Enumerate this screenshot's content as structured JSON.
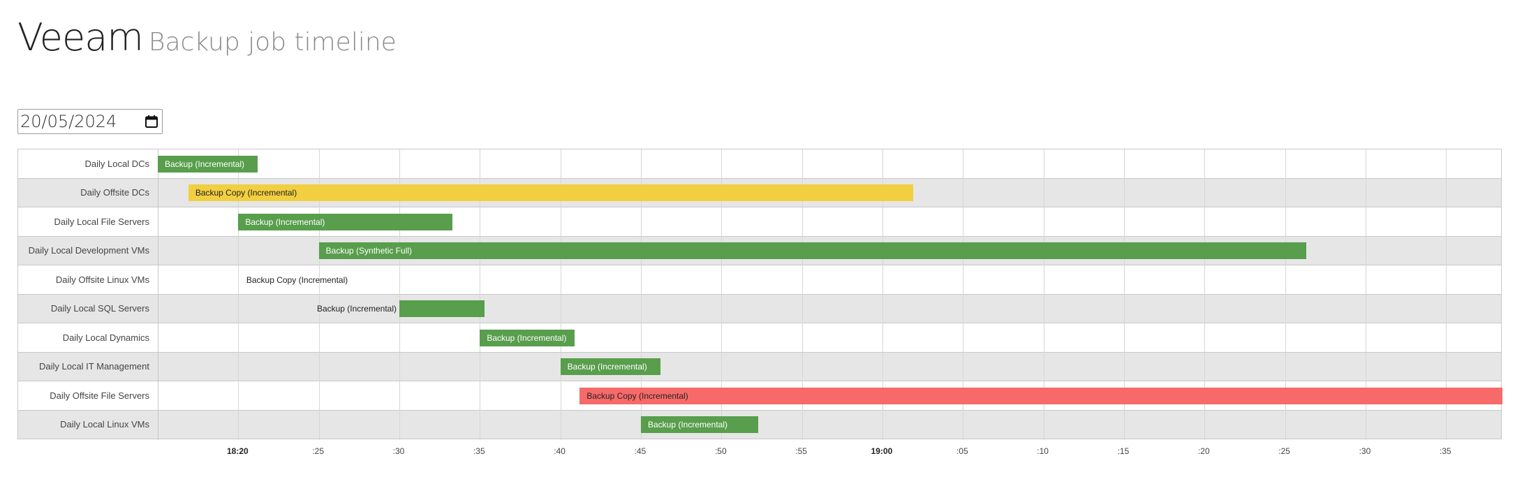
{
  "header": {
    "brand": "Veeam",
    "subtitle": "Backup job timeline"
  },
  "date_picker": {
    "value": "20/05/2024",
    "icon": "calendar-icon"
  },
  "timeline": {
    "start_minute": 1095,
    "end_minute": 1178.5,
    "axis_ticks": [
      {
        "label": "18:20",
        "minute": 1100,
        "major": true
      },
      {
        "label": ":25",
        "minute": 1105
      },
      {
        "label": ":30",
        "minute": 1110
      },
      {
        "label": ":35",
        "minute": 1115
      },
      {
        "label": ":40",
        "minute": 1120
      },
      {
        "label": ":45",
        "minute": 1125
      },
      {
        "label": ":50",
        "minute": 1130
      },
      {
        "label": ":55",
        "minute": 1135
      },
      {
        "label": "19:00",
        "minute": 1140,
        "major": true
      },
      {
        "label": ":05",
        "minute": 1145
      },
      {
        "label": ":10",
        "minute": 1150
      },
      {
        "label": ":15",
        "minute": 1155
      },
      {
        "label": ":20",
        "minute": 1160
      },
      {
        "label": ":25",
        "minute": 1165
      },
      {
        "label": ":30",
        "minute": 1170
      },
      {
        "label": ":35",
        "minute": 1175
      }
    ],
    "jobs": [
      {
        "name": "Daily Local DCs",
        "task": "Backup (Incremental)",
        "status": "success",
        "start": 1095.0,
        "end": 1101.2
      },
      {
        "name": "Daily Offsite DCs",
        "task": "Backup Copy (Incremental)",
        "status": "warning",
        "start": 1096.9,
        "end": 1141.9
      },
      {
        "name": "Daily Local File Servers",
        "task": "Backup (Incremental)",
        "status": "success",
        "start": 1100.0,
        "end": 1113.3
      },
      {
        "name": "Daily Local Development VMs",
        "task": "Backup (Synthetic Full)",
        "status": "success",
        "start": 1105.0,
        "end": 1166.3
      },
      {
        "name": "Daily Offsite Linux VMs",
        "task": "Backup Copy (Incremental)",
        "status": "none",
        "start": 1100.5,
        "end": 1100.5
      },
      {
        "name": "Daily Local SQL Servers",
        "task": "Backup (Incremental)",
        "status": "success",
        "start": 1110.0,
        "end": 1115.3
      },
      {
        "name": "Daily Local Dynamics",
        "task": "Backup (Incremental)",
        "status": "success",
        "start": 1115.0,
        "end": 1120.9
      },
      {
        "name": "Daily Local IT Management",
        "task": "Backup (Incremental)",
        "status": "success",
        "start": 1120.0,
        "end": 1126.2
      },
      {
        "name": "Daily Offsite File Servers",
        "task": "Backup Copy (Incremental)",
        "status": "failed",
        "start": 1121.2,
        "end": 1178.5
      },
      {
        "name": "Daily Local Linux VMs",
        "task": "Backup (Incremental)",
        "status": "success",
        "start": 1125.0,
        "end": 1132.3
      }
    ],
    "colors": {
      "success": "#589e4c",
      "warning": "#f2cf40",
      "failed": "#f76a6a"
    }
  }
}
